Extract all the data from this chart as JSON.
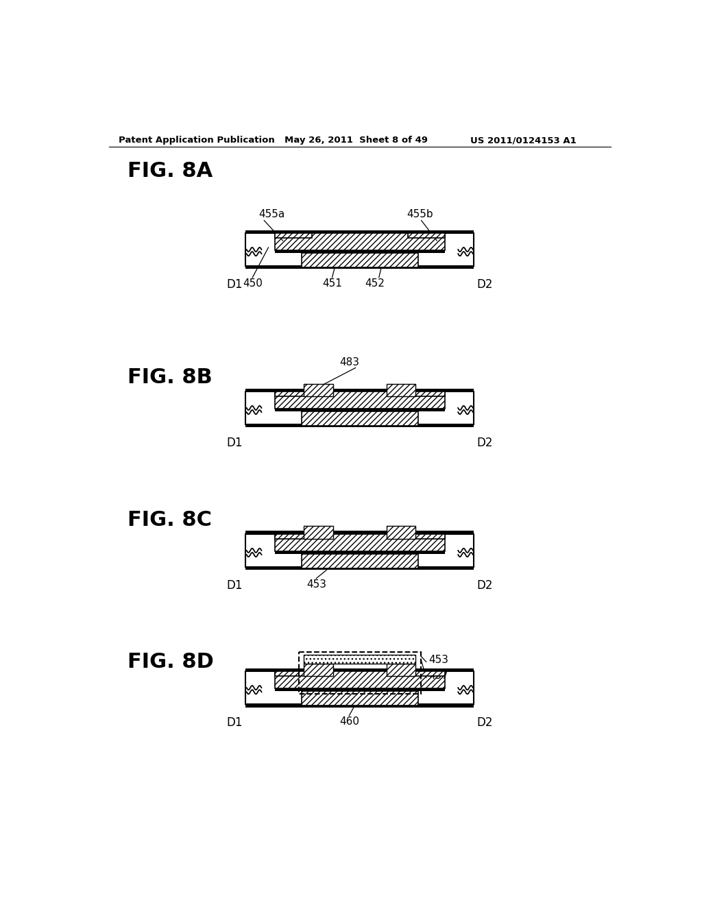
{
  "header_left": "Patent Application Publication",
  "header_mid": "May 26, 2011  Sheet 8 of 49",
  "header_right": "US 2011/0124153 A1",
  "background_color": "#ffffff"
}
